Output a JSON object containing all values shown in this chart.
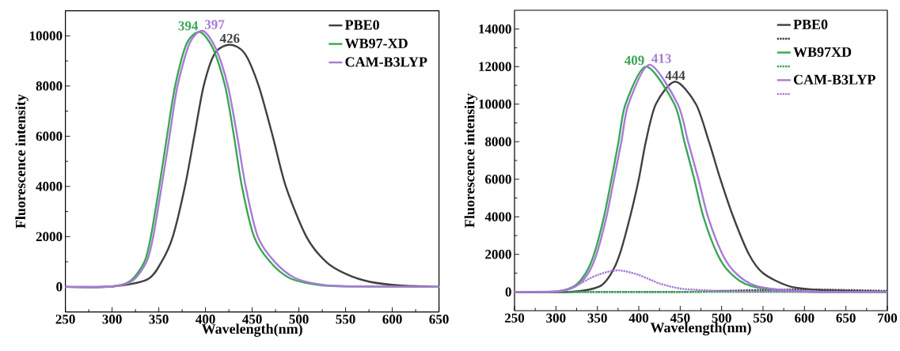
{
  "chart_data": [
    {
      "type": "line",
      "xlabel": "Wavelength(nm)",
      "ylabel": "Fluorescence intensity",
      "xlim": [
        250,
        650
      ],
      "ylim": [
        -1000,
        11000
      ],
      "xticks": [
        250,
        300,
        350,
        400,
        450,
        500,
        550,
        600,
        650
      ],
      "yticks": [
        0,
        2000,
        4000,
        6000,
        8000,
        10000
      ],
      "legend": "top right",
      "grid": false,
      "annotations": [
        {
          "text": "426",
          "x": 426,
          "y": 9650
        },
        {
          "text": "394",
          "x": 394,
          "y": 10150
        },
        {
          "text": "397",
          "x": 397,
          "y": 10200
        }
      ],
      "series": [
        {
          "name": "PBE0",
          "color": "#404040",
          "line_style": "solid",
          "x": [
            250,
            300,
            338,
            353,
            365,
            378,
            388,
            398,
            410,
            426,
            442,
            457,
            472,
            486,
            508,
            529,
            551,
            576,
            610,
            650
          ],
          "values": [
            0,
            10,
            300,
            1000,
            2000,
            4000,
            6000,
            8000,
            9300,
            9650,
            9300,
            8000,
            6000,
            4000,
            2000,
            1000,
            500,
            200,
            50,
            0
          ]
        },
        {
          "name": "WB97-XD",
          "color": "#3aa655",
          "line_style": "solid",
          "x": [
            250,
            300,
            320,
            334.7,
            341.5,
            350.5,
            358.8,
            367.5,
            380,
            394,
            408,
            421,
            430.5,
            439,
            452,
            469,
            490,
            520,
            550,
            650
          ],
          "values": [
            0,
            20,
            250,
            1000,
            2000,
            4000,
            6000,
            8000,
            9700,
            10150,
            9500,
            8000,
            6000,
            4000,
            2000,
            1000,
            350,
            80,
            20,
            0
          ]
        },
        {
          "name": "CAM-B3LYP",
          "color": "#a87ad8",
          "line_style": "solid",
          "x": [
            250,
            300,
            322,
            337,
            344,
            353,
            361.5,
            370,
            383,
            397,
            411,
            424,
            434,
            443,
            456,
            474,
            496,
            525,
            555,
            650
          ],
          "values": [
            0,
            20,
            250,
            1000,
            2000,
            4000,
            6000,
            8000,
            9700,
            10200,
            9500,
            8000,
            6000,
            4000,
            2000,
            1000,
            350,
            80,
            20,
            0
          ]
        }
      ]
    },
    {
      "type": "line",
      "xlabel": "Wavelength(nm)",
      "ylabel": "Fluorescence intensity",
      "xlim": [
        250,
        700
      ],
      "ylim": [
        -1000,
        15000
      ],
      "xticks": [
        250,
        300,
        350,
        400,
        450,
        500,
        550,
        600,
        650,
        700
      ],
      "yticks": [
        0,
        2000,
        4000,
        6000,
        8000,
        10000,
        12000,
        14000
      ],
      "legend": "top right",
      "grid": false,
      "annotations": [
        {
          "text": "444",
          "x": 444,
          "y": 11200
        },
        {
          "text": "409",
          "x": 409,
          "y": 12000
        },
        {
          "text": "413",
          "x": 413,
          "y": 12100
        }
      ],
      "series": [
        {
          "name": "PBE0",
          "color": "#404040",
          "line_style": "solid",
          "x": [
            250,
            320,
            353,
            367,
            377,
            389.5,
            400,
            408.5,
            420.6,
            444,
            469,
            484.7,
            498.5,
            514,
            533,
            550,
            581.6,
            620,
            700
          ],
          "values": [
            0,
            10,
            300,
            1000,
            2000,
            4000,
            6000,
            8000,
            10000,
            11200,
            10000,
            8000,
            6000,
            4000,
            2000,
            1000,
            300,
            100,
            0
          ]
        },
        {
          "color": "#404040",
          "line_style": "dotted",
          "x": [
            250,
            450,
            500,
            550,
            600,
            650,
            700
          ],
          "values": [
            0,
            0,
            50,
            100,
            130,
            100,
            50
          ]
        },
        {
          "name": "WB97XD",
          "color": "#3aa655",
          "line_style": "solid",
          "x": [
            250,
            300,
            322,
            336,
            346,
            358,
            367,
            375.6,
            384,
            409,
            443,
            455,
            467,
            478,
            495,
            510.6,
            536.6,
            600,
            700
          ],
          "values": [
            0,
            20,
            300,
            1000,
            2000,
            4000,
            6000,
            8000,
            10000,
            12000,
            10000,
            8000,
            6000,
            4000,
            2000,
            1000,
            300,
            20,
            0
          ]
        },
        {
          "color": "#3aa655",
          "line_style": "dotted",
          "x": [
            250,
            700
          ],
          "values": [
            0,
            0
          ]
        },
        {
          "name": "CAM-B3LYP",
          "color": "#a87ad8",
          "line_style": "solid",
          "x": [
            250,
            300,
            324,
            339,
            349,
            361,
            370,
            379,
            387.5,
            413,
            447,
            459.5,
            472,
            483.5,
            501,
            517,
            543,
            605,
            700
          ],
          "values": [
            0,
            20,
            300,
            1000,
            2000,
            4000,
            6000,
            8000,
            10000,
            12100,
            10000,
            8000,
            6000,
            4000,
            2000,
            1000,
            300,
            20,
            0
          ]
        },
        {
          "color": "#a87ad8",
          "line_style": "dotted",
          "x": [
            250,
            300,
            310,
            325,
            350,
            375,
            400,
            425,
            450,
            475,
            500,
            550,
            700
          ],
          "values": [
            0,
            20,
            100,
            350,
            900,
            1150,
            900,
            450,
            180,
            100,
            50,
            20,
            0
          ]
        }
      ]
    }
  ]
}
